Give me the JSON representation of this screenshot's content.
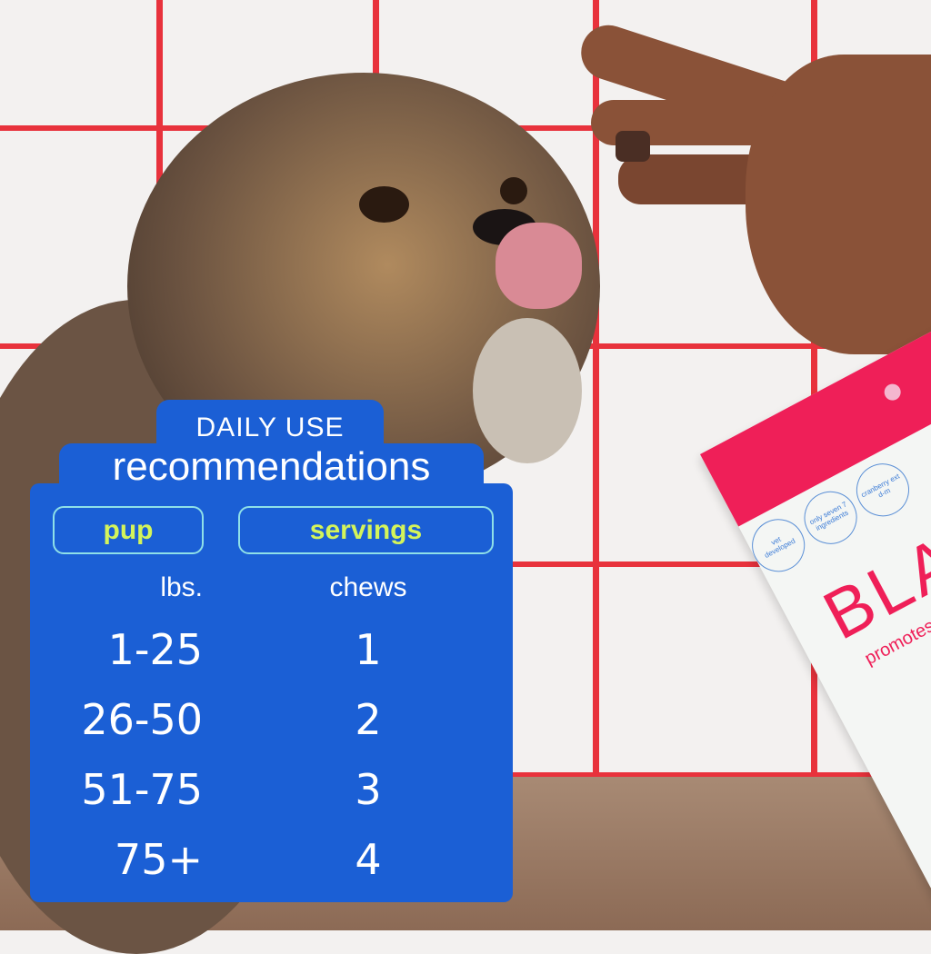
{
  "card": {
    "title_top": "DAILY USE",
    "title_main": "recommendations",
    "headers": [
      "pup",
      "servings"
    ],
    "units": [
      "lbs.",
      "chews"
    ],
    "rows": [
      {
        "weight": "1-25",
        "chews": "1"
      },
      {
        "weight": "26-50",
        "chews": "2"
      },
      {
        "weight": "51-75",
        "chews": "3"
      },
      {
        "weight": "75+",
        "chews": "4"
      }
    ]
  },
  "package": {
    "brand": "BLADD",
    "tagline": "promotes healthy b",
    "badges": [
      "vet developed",
      "only seven 7 ingredients",
      "cranberry ext d-m"
    ]
  },
  "colors": {
    "panel": "#1b5fd5",
    "accent": "#d4f45a",
    "grout": "#e8323c",
    "package_band": "#ef1f58"
  }
}
